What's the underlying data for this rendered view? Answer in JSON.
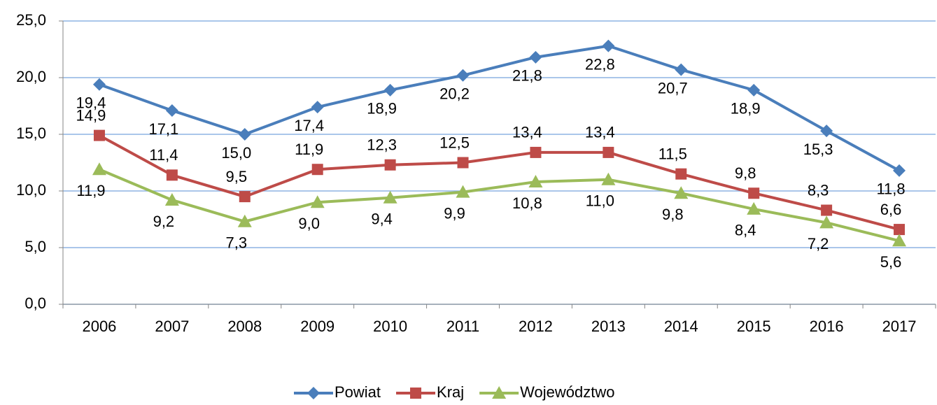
{
  "chart_data": {
    "type": "line",
    "categories": [
      "2006",
      "2007",
      "2008",
      "2009",
      "2010",
      "2011",
      "2012",
      "2013",
      "2014",
      "2015",
      "2016",
      "2017"
    ],
    "series": [
      {
        "name": "Powiat",
        "color": "#4a7ebb",
        "marker": "diamond",
        "values": [
          19.4,
          17.1,
          15.0,
          17.4,
          18.9,
          20.2,
          21.8,
          22.8,
          20.7,
          18.9,
          15.3,
          11.8
        ],
        "value_labels": [
          "19,4",
          "17,1",
          "15,0",
          "17,4",
          "18,9",
          "20,2",
          "21,8",
          "22,8",
          "20,7",
          "18,9",
          "15,3",
          "11,8"
        ]
      },
      {
        "name": "Kraj",
        "color": "#be4b48",
        "marker": "square",
        "values": [
          14.9,
          11.4,
          9.5,
          11.9,
          12.3,
          12.5,
          13.4,
          13.4,
          11.5,
          9.8,
          8.3,
          6.6
        ],
        "value_labels": [
          "14,9",
          "11,4",
          "9,5",
          "11,9",
          "12,3",
          "12,5",
          "13,4",
          "13,4",
          "11,5",
          "9,8",
          "8,3",
          "6,6"
        ]
      },
      {
        "name": "Województwo",
        "color": "#9bbb59",
        "marker": "triangle",
        "values": [
          11.9,
          9.2,
          7.3,
          9.0,
          9.4,
          9.9,
          10.8,
          11.0,
          9.8,
          8.4,
          7.2,
          5.6
        ],
        "value_labels": [
          "11,9",
          "9,2",
          "7,3",
          "9,0",
          "9,4",
          "9,9",
          "10,8",
          "11,0",
          "9,8",
          "8,4",
          "7,2",
          "5,6"
        ]
      }
    ],
    "ylim": [
      0,
      25
    ],
    "yticks": [
      {
        "value": 0,
        "label": "0,0"
      },
      {
        "value": 5,
        "label": "5,0"
      },
      {
        "value": 10,
        "label": "10,0"
      },
      {
        "value": 15,
        "label": "15,0"
      },
      {
        "value": 20,
        "label": "20,0"
      },
      {
        "value": 25,
        "label": "25,0"
      }
    ],
    "grid": true,
    "legend": "bottom"
  }
}
